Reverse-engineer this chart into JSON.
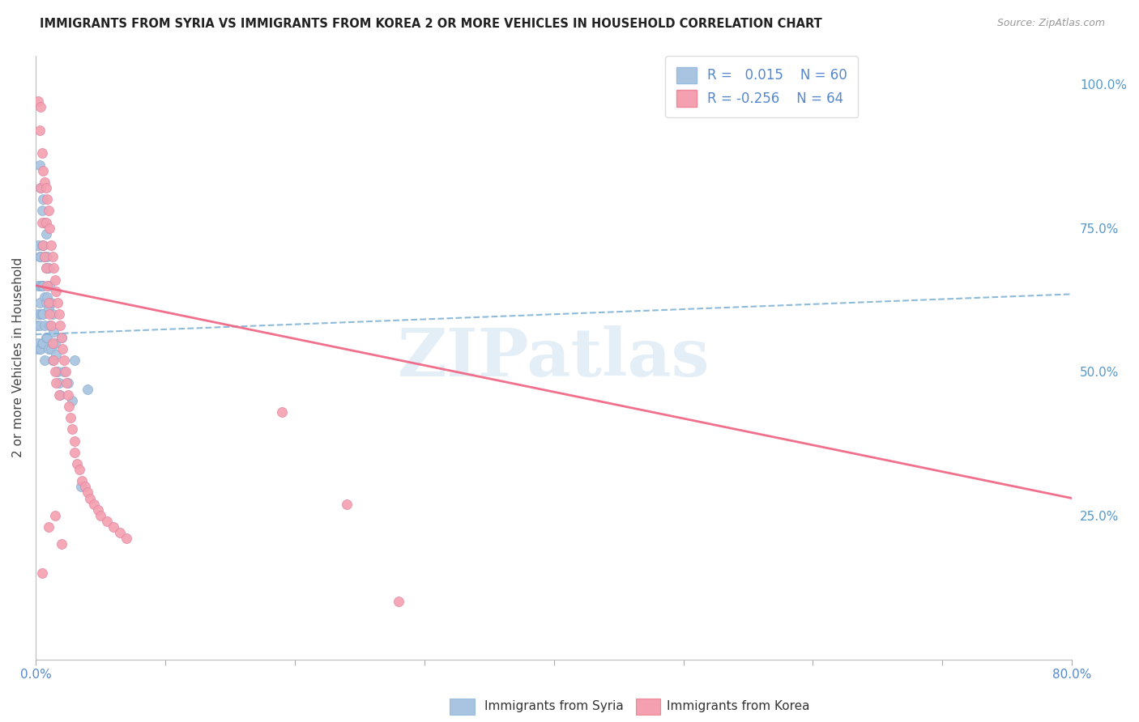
{
  "title": "IMMIGRANTS FROM SYRIA VS IMMIGRANTS FROM KOREA 2 OR MORE VEHICLES IN HOUSEHOLD CORRELATION CHART",
  "source": "Source: ZipAtlas.com",
  "ylabel": "2 or more Vehicles in Household",
  "yticks_right": [
    "100.0%",
    "75.0%",
    "50.0%",
    "25.0%"
  ],
  "yticks_right_vals": [
    1.0,
    0.75,
    0.5,
    0.25
  ],
  "xlim": [
    0.0,
    0.8
  ],
  "ylim": [
    0.0,
    1.05
  ],
  "legend_r_syria": "0.015",
  "legend_n_syria": "60",
  "legend_r_korea": "-0.256",
  "legend_n_korea": "64",
  "color_syria": "#a8c4e0",
  "color_korea": "#f4a0b0",
  "trendline_syria_color": "#7ab0d4",
  "trendline_korea_color": "#f06080",
  "watermark": "ZIPatlas",
  "background_color": "#ffffff",
  "grid_color": "#cccccc",
  "syria_scatter_x": [
    0.001,
    0.001,
    0.002,
    0.002,
    0.002,
    0.002,
    0.003,
    0.003,
    0.003,
    0.003,
    0.003,
    0.004,
    0.004,
    0.004,
    0.004,
    0.004,
    0.005,
    0.005,
    0.005,
    0.005,
    0.005,
    0.006,
    0.006,
    0.006,
    0.006,
    0.006,
    0.007,
    0.007,
    0.007,
    0.007,
    0.007,
    0.008,
    0.008,
    0.008,
    0.008,
    0.009,
    0.009,
    0.009,
    0.01,
    0.01,
    0.01,
    0.011,
    0.011,
    0.012,
    0.012,
    0.013,
    0.013,
    0.014,
    0.015,
    0.016,
    0.017,
    0.018,
    0.019,
    0.02,
    0.022,
    0.025,
    0.028,
    0.03,
    0.035,
    0.04
  ],
  "syria_scatter_y": [
    0.58,
    0.54,
    0.72,
    0.65,
    0.6,
    0.55,
    0.86,
    0.7,
    0.62,
    0.58,
    0.54,
    0.82,
    0.7,
    0.65,
    0.6,
    0.54,
    0.78,
    0.72,
    0.65,
    0.6,
    0.55,
    0.8,
    0.72,
    0.65,
    0.6,
    0.55,
    0.76,
    0.7,
    0.63,
    0.58,
    0.52,
    0.74,
    0.68,
    0.62,
    0.56,
    0.7,
    0.63,
    0.56,
    0.68,
    0.61,
    0.54,
    0.65,
    0.58,
    0.62,
    0.54,
    0.6,
    0.52,
    0.57,
    0.55,
    0.53,
    0.5,
    0.48,
    0.46,
    0.56,
    0.5,
    0.48,
    0.45,
    0.52,
    0.3,
    0.47
  ],
  "korea_scatter_x": [
    0.002,
    0.003,
    0.004,
    0.004,
    0.005,
    0.005,
    0.006,
    0.006,
    0.007,
    0.007,
    0.008,
    0.008,
    0.008,
    0.009,
    0.009,
    0.01,
    0.01,
    0.011,
    0.011,
    0.012,
    0.012,
    0.013,
    0.013,
    0.014,
    0.014,
    0.015,
    0.015,
    0.016,
    0.016,
    0.017,
    0.018,
    0.018,
    0.019,
    0.02,
    0.021,
    0.022,
    0.023,
    0.024,
    0.025,
    0.026,
    0.027,
    0.028,
    0.03,
    0.03,
    0.032,
    0.034,
    0.036,
    0.038,
    0.04,
    0.042,
    0.045,
    0.048,
    0.05,
    0.055,
    0.06,
    0.065,
    0.07,
    0.19,
    0.24,
    0.28,
    0.005,
    0.01,
    0.015,
    0.02
  ],
  "korea_scatter_y": [
    0.97,
    0.92,
    0.96,
    0.82,
    0.88,
    0.76,
    0.85,
    0.72,
    0.83,
    0.7,
    0.82,
    0.76,
    0.68,
    0.8,
    0.65,
    0.78,
    0.62,
    0.75,
    0.6,
    0.72,
    0.58,
    0.7,
    0.55,
    0.68,
    0.52,
    0.66,
    0.5,
    0.64,
    0.48,
    0.62,
    0.6,
    0.46,
    0.58,
    0.56,
    0.54,
    0.52,
    0.5,
    0.48,
    0.46,
    0.44,
    0.42,
    0.4,
    0.38,
    0.36,
    0.34,
    0.33,
    0.31,
    0.3,
    0.29,
    0.28,
    0.27,
    0.26,
    0.25,
    0.24,
    0.23,
    0.22,
    0.21,
    0.43,
    0.27,
    0.1,
    0.15,
    0.23,
    0.25,
    0.2
  ],
  "trendline_syria_x0": 0.0,
  "trendline_syria_y0": 0.565,
  "trendline_syria_x1": 0.8,
  "trendline_syria_y1": 0.635,
  "trendline_korea_x0": 0.0,
  "trendline_korea_y0": 0.65,
  "trendline_korea_x1": 0.8,
  "trendline_korea_y1": 0.28
}
